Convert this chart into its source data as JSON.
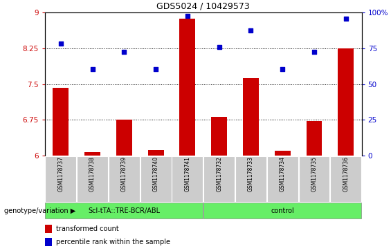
{
  "title": "GDS5024 / 10429573",
  "samples": [
    "GSM1178737",
    "GSM1178738",
    "GSM1178739",
    "GSM1178740",
    "GSM1178741",
    "GSM1178732",
    "GSM1178733",
    "GSM1178734",
    "GSM1178735",
    "GSM1178736"
  ],
  "bar_values": [
    7.42,
    6.08,
    6.75,
    6.12,
    8.87,
    6.82,
    7.62,
    6.1,
    6.72,
    8.25
  ],
  "scatter_values": [
    8.35,
    7.82,
    8.18,
    7.82,
    8.93,
    8.27,
    8.63,
    7.82,
    8.17,
    8.87
  ],
  "ylim_left": [
    6,
    9
  ],
  "ylim_right": [
    0,
    100
  ],
  "yticks_left": [
    6,
    6.75,
    7.5,
    8.25,
    9
  ],
  "yticks_right": [
    0,
    25,
    50,
    75,
    100
  ],
  "bar_color": "#CC0000",
  "scatter_color": "#0000CC",
  "group1_label": "Scl-tTA::TRE-BCR/ABL",
  "group2_label": "control",
  "group1_count": 5,
  "group2_count": 5,
  "group_bg_color": "#66EE66",
  "tick_label_bg": "#CCCCCC",
  "legend_bar_label": "transformed count",
  "legend_scatter_label": "percentile rank within the sample",
  "genotype_label": "genotype/variation",
  "dotted_grid_values": [
    6.75,
    7.5,
    8.25
  ],
  "bar_width": 0.5,
  "title_fontsize": 9,
  "tick_fontsize": 7.5,
  "sample_fontsize": 5.5,
  "group_fontsize": 7,
  "legend_fontsize": 7
}
